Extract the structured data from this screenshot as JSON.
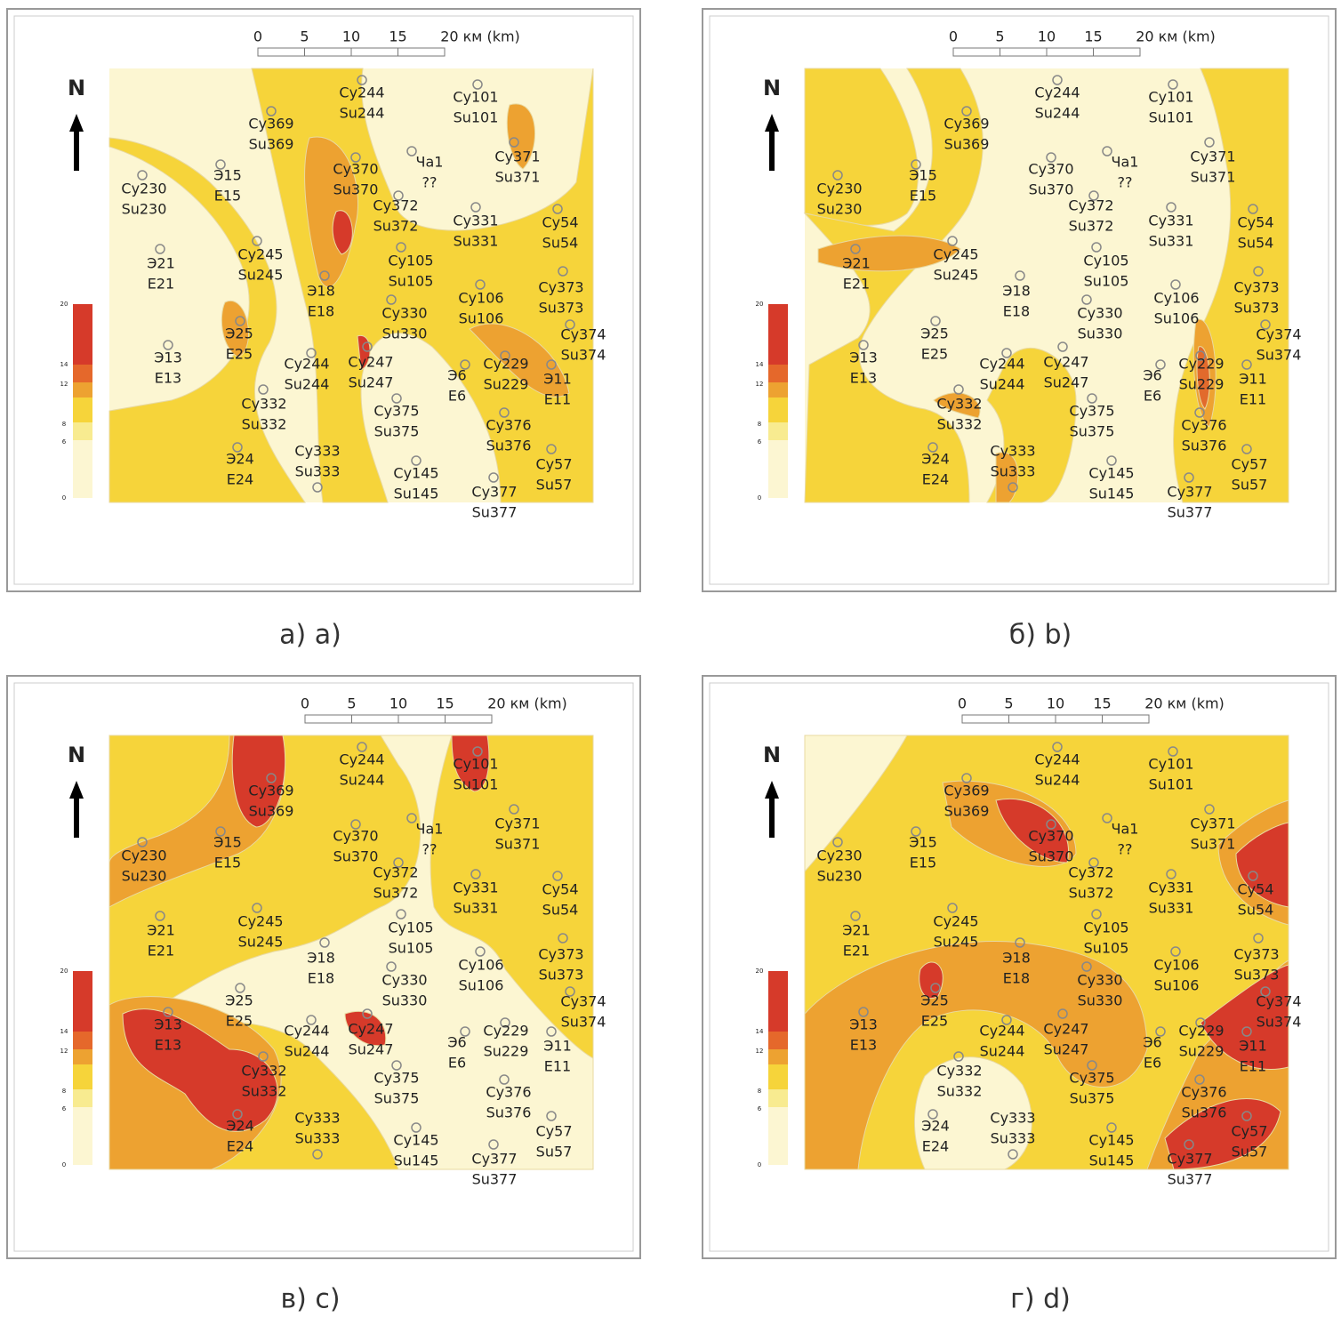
{
  "panels": [
    {
      "caption": "а) a)"
    },
    {
      "caption": "б) b)"
    },
    {
      "caption": "в) c)"
    },
    {
      "caption": "г) d)"
    }
  ],
  "scale_bar": {
    "labels": [
      "0",
      "5",
      "10",
      "15",
      "20 км (km)"
    ]
  },
  "north": "N",
  "legend_ticks": [
    20,
    14,
    12,
    8,
    6,
    0
  ],
  "wells": [
    {
      "ru": "Су244",
      "en": "Su244"
    },
    {
      "ru": "Су101",
      "en": "Su101"
    },
    {
      "ru": "Су369",
      "en": "Su369"
    },
    {
      "ru": "Су370",
      "en": "Su370"
    },
    {
      "ru": "Ча1",
      "en": "??"
    },
    {
      "ru": "Су371",
      "en": "Su371"
    },
    {
      "ru": "Су230",
      "en": "Su230"
    },
    {
      "ru": "Э15",
      "en": "E15"
    },
    {
      "ru": "Су372",
      "en": "Su372"
    },
    {
      "ru": "Су331",
      "en": "Su331"
    },
    {
      "ru": "Су54",
      "en": "Su54"
    },
    {
      "ru": "Э21",
      "en": "E21"
    },
    {
      "ru": "Су245",
      "en": "Su245"
    },
    {
      "ru": "Су105",
      "en": "Su105"
    },
    {
      "ru": "Су373",
      "en": "Su373"
    },
    {
      "ru": "Су106",
      "en": "Su106"
    },
    {
      "ru": "Э18",
      "en": "E18"
    },
    {
      "ru": "Су330",
      "en": "Su330"
    },
    {
      "ru": "Су374",
      "en": "Su374"
    },
    {
      "ru": "Э25",
      "en": "E25"
    },
    {
      "ru": "Э13",
      "en": "E13"
    },
    {
      "ru": "Су244",
      "en": "Su244"
    },
    {
      "ru": "Су247",
      "en": "Su247"
    },
    {
      "ru": "Су229",
      "en": "Su229"
    },
    {
      "ru": "Э6",
      "en": "E6"
    },
    {
      "ru": "Э11",
      "en": "E11"
    },
    {
      "ru": "Су332",
      "en": "Su332"
    },
    {
      "ru": "Су375",
      "en": "Su375"
    },
    {
      "ru": "Су376",
      "en": "Su376"
    },
    {
      "ru": "Э24",
      "en": "E24"
    },
    {
      "ru": "Су333",
      "en": "Su333"
    },
    {
      "ru": "Су57",
      "en": "Su57"
    },
    {
      "ru": "Су145",
      "en": "Su145"
    },
    {
      "ru": "Су377",
      "en": "Su377"
    }
  ]
}
